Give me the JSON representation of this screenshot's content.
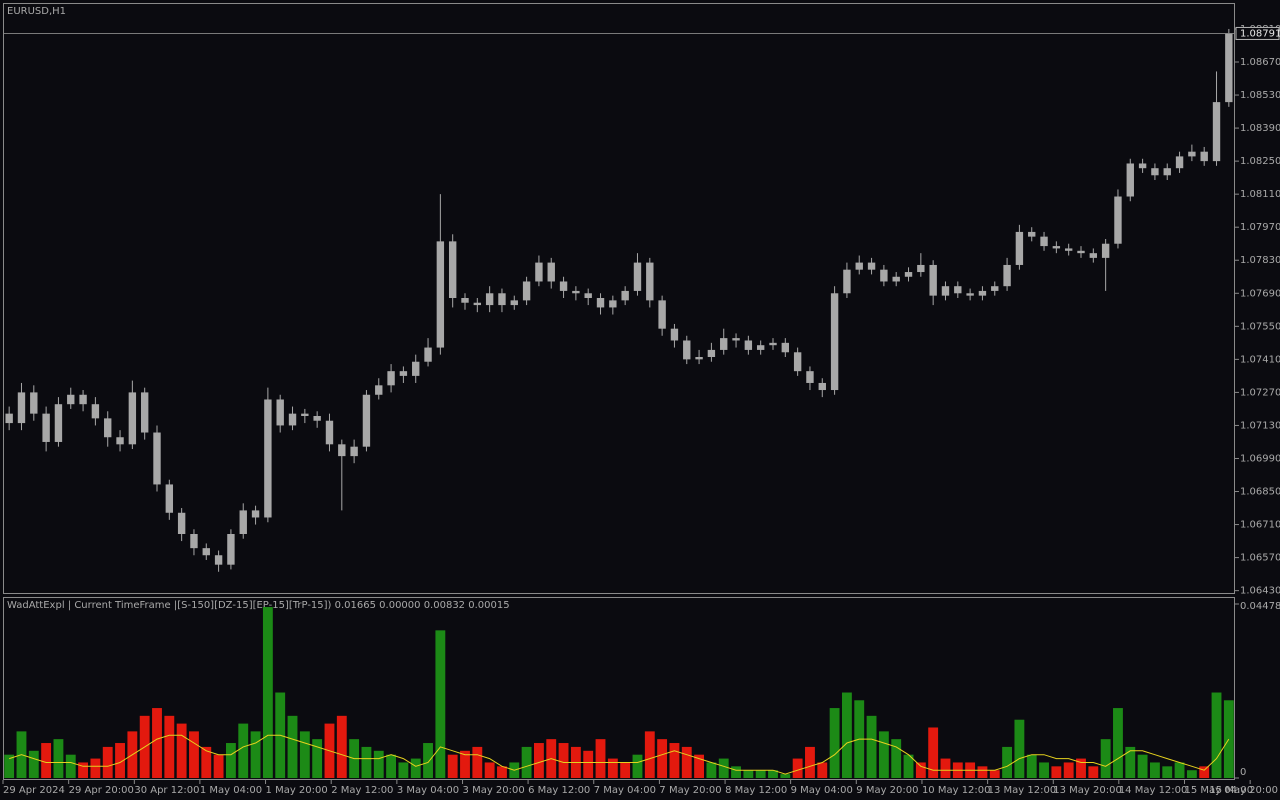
{
  "chart_data": [
    {
      "type": "candlestick",
      "title": "EURUSD,H1",
      "color": "#a8a8a8",
      "open": [
        1.0718,
        1.0714,
        1.0727,
        1.0718,
        1.0706,
        1.0722,
        1.0726,
        1.0722,
        1.0716,
        1.0708,
        1.0705,
        1.0727,
        1.071,
        1.0688,
        1.0676,
        1.0667,
        1.0661,
        1.0658,
        1.0654,
        1.0667,
        1.0677,
        1.0674,
        1.0724,
        1.0713,
        1.0718,
        1.0717,
        1.0715,
        1.0705,
        1.07,
        1.0704,
        1.0726,
        1.073,
        1.0736,
        1.0734,
        1.074,
        1.0746,
        1.0791,
        1.0767,
        1.0765,
        1.0764,
        1.0769,
        1.0764,
        1.0766,
        1.0774,
        1.0782,
        1.0774,
        1.077,
        1.0769,
        1.0767,
        1.0763,
        1.0766,
        1.077,
        1.0782,
        1.0766,
        1.0754,
        1.0749,
        1.0741,
        1.0742,
        1.0745,
        1.075,
        1.0749,
        1.0745,
        1.0747,
        1.0748,
        1.0744,
        1.0736,
        1.0731,
        1.0728,
        1.0769,
        1.0779,
        1.0782,
        1.0779,
        1.0774,
        1.0776,
        1.0778,
        1.0781,
        1.0768,
        1.0772,
        1.0769,
        1.0768,
        1.077,
        1.0772,
        1.0781,
        1.0795,
        1.0793,
        1.0789,
        1.0788,
        1.0787,
        1.0786,
        1.0784,
        1.079,
        1.081,
        1.0824,
        1.0822,
        1.0819,
        1.0822,
        1.0827,
        1.0829,
        1.0825,
        1.085
      ],
      "high": [
        1.0721,
        1.0731,
        1.073,
        1.0721,
        1.0725,
        1.0729,
        1.0728,
        1.0725,
        1.0719,
        1.0711,
        1.0732,
        1.0729,
        1.0713,
        1.069,
        1.0678,
        1.0669,
        1.0663,
        1.066,
        1.0669,
        1.068,
        1.0679,
        1.0729,
        1.0726,
        1.0721,
        1.072,
        1.0719,
        1.0718,
        1.0707,
        1.0707,
        1.0728,
        1.0733,
        1.0739,
        1.0738,
        1.0743,
        1.075,
        1.0811,
        1.0794,
        1.0769,
        1.0767,
        1.0772,
        1.0771,
        1.0768,
        1.0776,
        1.0785,
        1.0784,
        1.0776,
        1.0772,
        1.0771,
        1.0769,
        1.0768,
        1.0772,
        1.0786,
        1.0784,
        1.0768,
        1.0756,
        1.0751,
        1.0745,
        1.0748,
        1.0754,
        1.0752,
        1.0751,
        1.0749,
        1.075,
        1.075,
        1.0746,
        1.0738,
        1.0733,
        1.0772,
        1.0782,
        1.0785,
        1.0784,
        1.0781,
        1.0778,
        1.078,
        1.0786,
        1.0783,
        1.0774,
        1.0774,
        1.0771,
        1.0772,
        1.0774,
        1.0784,
        1.0798,
        1.0797,
        1.0795,
        1.0791,
        1.079,
        1.0789,
        1.0788,
        1.0792,
        1.0813,
        1.0826,
        1.0826,
        1.0824,
        1.0824,
        1.0829,
        1.0832,
        1.0831,
        1.0863,
        1.0881
      ],
      "low": [
        1.0711,
        1.0711,
        1.0715,
        1.0702,
        1.0704,
        1.072,
        1.0719,
        1.0713,
        1.0704,
        1.0702,
        1.0703,
        1.0707,
        1.0685,
        1.0673,
        1.0664,
        1.0658,
        1.0656,
        1.0651,
        1.0652,
        1.0665,
        1.0671,
        1.0672,
        1.071,
        1.0711,
        1.0714,
        1.0712,
        1.0702,
        1.0677,
        1.0697,
        1.0702,
        1.0724,
        1.0727,
        1.0731,
        1.0731,
        1.0738,
        1.0743,
        1.0763,
        1.0762,
        1.0761,
        1.0761,
        1.0761,
        1.0762,
        1.0764,
        1.0772,
        1.0771,
        1.0767,
        1.0766,
        1.0764,
        1.076,
        1.076,
        1.0764,
        1.0768,
        1.0763,
        1.0751,
        1.0746,
        1.0739,
        1.0739,
        1.074,
        1.0743,
        1.0746,
        1.0743,
        1.0743,
        1.0745,
        1.0742,
        1.0734,
        1.0728,
        1.0725,
        1.0726,
        1.0767,
        1.0777,
        1.0777,
        1.0772,
        1.0772,
        1.0774,
        1.0776,
        1.0764,
        1.0766,
        1.0767,
        1.0766,
        1.0766,
        1.0768,
        1.077,
        1.0779,
        1.0791,
        1.0787,
        1.0786,
        1.0785,
        1.0784,
        1.0782,
        1.077,
        1.0788,
        1.0808,
        1.082,
        1.0817,
        1.0817,
        1.082,
        1.0825,
        1.0823,
        1.0823,
        1.0848
      ],
      "close": [
        1.0714,
        1.0727,
        1.0718,
        1.0706,
        1.0722,
        1.0726,
        1.0722,
        1.0716,
        1.0708,
        1.0705,
        1.0727,
        1.071,
        1.0688,
        1.0676,
        1.0667,
        1.0661,
        1.0658,
        1.0654,
        1.0667,
        1.0677,
        1.0674,
        1.0724,
        1.0713,
        1.0718,
        1.0717,
        1.0715,
        1.0705,
        1.07,
        1.0704,
        1.0726,
        1.073,
        1.0736,
        1.0734,
        1.074,
        1.0746,
        1.0791,
        1.0767,
        1.0765,
        1.0764,
        1.0769,
        1.0764,
        1.0766,
        1.0774,
        1.0782,
        1.0774,
        1.077,
        1.0769,
        1.0767,
        1.0763,
        1.0766,
        1.077,
        1.0782,
        1.0766,
        1.0754,
        1.0749,
        1.0741,
        1.0742,
        1.0745,
        1.075,
        1.0749,
        1.0745,
        1.0747,
        1.0748,
        1.0744,
        1.0736,
        1.0731,
        1.0728,
        1.0769,
        1.0779,
        1.0782,
        1.0779,
        1.0774,
        1.0776,
        1.0778,
        1.0781,
        1.0768,
        1.0772,
        1.0769,
        1.0768,
        1.077,
        1.0772,
        1.0781,
        1.0795,
        1.0793,
        1.0789,
        1.0788,
        1.0787,
        1.0786,
        1.0784,
        1.079,
        1.081,
        1.0824,
        1.0822,
        1.0819,
        1.0822,
        1.0827,
        1.0829,
        1.0825,
        1.085,
        1.0879
      ],
      "ylim": [
        1.0642,
        1.0892
      ],
      "yticks": [
        {
          "value": 1.0881,
          "label": "1.08810"
        },
        {
          "value": 1.0867,
          "label": "1.08670"
        },
        {
          "value": 1.0853,
          "label": "1.08530"
        },
        {
          "value": 1.0839,
          "label": "1.08390"
        },
        {
          "value": 1.0825,
          "label": "1.08250"
        },
        {
          "value": 1.0811,
          "label": "1.08110"
        },
        {
          "value": 1.0797,
          "label": "1.07970"
        },
        {
          "value": 1.0783,
          "label": "1.07830"
        },
        {
          "value": 1.0769,
          "label": "1.07690"
        },
        {
          "value": 1.0755,
          "label": "1.07550"
        },
        {
          "value": 1.0741,
          "label": "1.07410"
        },
        {
          "value": 1.0727,
          "label": "1.07270"
        },
        {
          "value": 1.0713,
          "label": "1.07130"
        },
        {
          "value": 1.0699,
          "label": "1.06990"
        },
        {
          "value": 1.0685,
          "label": "1.06850"
        },
        {
          "value": 1.0671,
          "label": "1.06710"
        },
        {
          "value": 1.0657,
          "label": "1.06570"
        },
        {
          "value": 1.0643,
          "label": "1.06430"
        }
      ],
      "last_price": 1.08791,
      "xlim": [
        0,
        100
      ],
      "xticks": [
        {
          "value": 0,
          "label": "29 Apr 2024"
        },
        {
          "value": 5.33,
          "label": "29 Apr 20:00"
        },
        {
          "value": 10.66,
          "label": "30 Apr 12:00"
        },
        {
          "value": 15.98,
          "label": "1 May 04:00"
        },
        {
          "value": 21.31,
          "label": "1 May 20:00"
        },
        {
          "value": 26.64,
          "label": "2 May 12:00"
        },
        {
          "value": 31.97,
          "label": "3 May 04:00"
        },
        {
          "value": 37.3,
          "label": "3 May 20:00"
        },
        {
          "value": 42.62,
          "label": "6 May 12:00"
        },
        {
          "value": 47.95,
          "label": "7 May 04:00"
        },
        {
          "value": 53.28,
          "label": "7 May 20:00"
        },
        {
          "value": 58.61,
          "label": "8 May 12:00"
        },
        {
          "value": 63.93,
          "label": "9 May 04:00"
        },
        {
          "value": 69.26,
          "label": "9 May 20:00"
        },
        {
          "value": 74.59,
          "label": "10 May 12:00"
        },
        {
          "value": 79.92,
          "label": "13 May 12:00"
        },
        {
          "value": 85.25,
          "label": "13 May 20:00"
        },
        {
          "value": 90.57,
          "label": "14 May 12:00"
        },
        {
          "value": 95.9,
          "label": "15 May 04:00"
        },
        {
          "value": 101.23,
          "label": "15 May 20:00"
        }
      ]
    },
    {
      "type": "bar",
      "title": "WadAttExpl | Current TimeFrame |[S-150][DZ-15][EP-15][TrP-15]) 0.01665 0.00000 0.00832 0.00015",
      "values": [
        0.006,
        0.012,
        0.007,
        0.009,
        0.01,
        0.006,
        0.004,
        0.005,
        0.008,
        0.009,
        0.012,
        0.016,
        0.018,
        0.016,
        0.014,
        0.012,
        0.008,
        0.006,
        0.009,
        0.014,
        0.012,
        0.044,
        0.022,
        0.016,
        0.012,
        0.01,
        0.014,
        0.016,
        0.01,
        0.008,
        0.007,
        0.006,
        0.004,
        0.005,
        0.009,
        0.038,
        0.006,
        0.007,
        0.008,
        0.004,
        0.003,
        0.004,
        0.008,
        0.009,
        0.01,
        0.009,
        0.008,
        0.007,
        0.01,
        0.005,
        0.004,
        0.006,
        0.012,
        0.01,
        0.009,
        0.008,
        0.006,
        0.004,
        0.005,
        0.003,
        0.002,
        0.002,
        0.002,
        0.001,
        0.005,
        0.008,
        0.004,
        0.018,
        0.022,
        0.02,
        0.016,
        0.012,
        0.01,
        0.006,
        0.004,
        0.013,
        0.005,
        0.004,
        0.004,
        0.003,
        0.002,
        0.008,
        0.015,
        0.006,
        0.004,
        0.003,
        0.004,
        0.005,
        0.003,
        0.01,
        0.018,
        0.008,
        0.006,
        0.004,
        0.003,
        0.004,
        0.002,
        0.003,
        0.022,
        0.02
      ],
      "colors": [
        "#1c8a16",
        "#1c8a16",
        "#1c8a16",
        "#e3190e",
        "#1c8a16",
        "#1c8a16",
        "#e3190e",
        "#e3190e",
        "#e3190e",
        "#e3190e",
        "#e3190e",
        "#e3190e",
        "#e3190e",
        "#e3190e",
        "#e3190e",
        "#e3190e",
        "#e3190e",
        "#e3190e",
        "#1c8a16",
        "#1c8a16",
        "#1c8a16",
        "#1c8a16",
        "#1c8a16",
        "#1c8a16",
        "#1c8a16",
        "#1c8a16",
        "#e3190e",
        "#e3190e",
        "#1c8a16",
        "#1c8a16",
        "#1c8a16",
        "#1c8a16",
        "#1c8a16",
        "#1c8a16",
        "#1c8a16",
        "#1c8a16",
        "#e3190e",
        "#e3190e",
        "#e3190e",
        "#e3190e",
        "#e3190e",
        "#1c8a16",
        "#1c8a16",
        "#e3190e",
        "#e3190e",
        "#e3190e",
        "#e3190e",
        "#e3190e",
        "#e3190e",
        "#e3190e",
        "#e3190e",
        "#1c8a16",
        "#e3190e",
        "#e3190e",
        "#e3190e",
        "#e3190e",
        "#e3190e",
        "#1c8a16",
        "#1c8a16",
        "#1c8a16",
        "#1c8a16",
        "#1c8a16",
        "#1c8a16",
        "#1c8a16",
        "#e3190e",
        "#e3190e",
        "#e3190e",
        "#1c8a16",
        "#1c8a16",
        "#1c8a16",
        "#1c8a16",
        "#1c8a16",
        "#1c8a16",
        "#1c8a16",
        "#e3190e",
        "#e3190e",
        "#e3190e",
        "#e3190e",
        "#e3190e",
        "#e3190e",
        "#e3190e",
        "#1c8a16",
        "#1c8a16",
        "#1c8a16",
        "#1c8a16",
        "#e3190e",
        "#e3190e",
        "#e3190e",
        "#e3190e",
        "#1c8a16",
        "#1c8a16",
        "#1c8a16",
        "#1c8a16",
        "#1c8a16",
        "#1c8a16",
        "#1c8a16",
        "#1c8a16",
        "#e3190e",
        "#1c8a16",
        "#1c8a16"
      ],
      "signal_line": {
        "color": "#e6d21e",
        "values": [
          0.005,
          0.006,
          0.005,
          0.004,
          0.004,
          0.004,
          0.003,
          0.003,
          0.003,
          0.004,
          0.006,
          0.008,
          0.01,
          0.011,
          0.011,
          0.009,
          0.007,
          0.006,
          0.006,
          0.008,
          0.009,
          0.011,
          0.011,
          0.01,
          0.009,
          0.008,
          0.007,
          0.006,
          0.005,
          0.005,
          0.005,
          0.006,
          0.005,
          0.003,
          0.004,
          0.008,
          0.007,
          0.006,
          0.006,
          0.005,
          0.003,
          0.002,
          0.003,
          0.004,
          0.005,
          0.004,
          0.004,
          0.004,
          0.004,
          0.004,
          0.004,
          0.004,
          0.005,
          0.006,
          0.007,
          0.006,
          0.005,
          0.004,
          0.003,
          0.002,
          0.002,
          0.002,
          0.002,
          0.001,
          0.002,
          0.003,
          0.004,
          0.006,
          0.009,
          0.01,
          0.01,
          0.009,
          0.008,
          0.006,
          0.003,
          0.002,
          0.002,
          0.002,
          0.002,
          0.002,
          0.002,
          0.003,
          0.005,
          0.006,
          0.006,
          0.005,
          0.005,
          0.004,
          0.004,
          0.003,
          0.005,
          0.007,
          0.007,
          0.006,
          0.005,
          0.004,
          0.003,
          0.002,
          0.005,
          0.01
        ]
      },
      "ylim": [
        0,
        0.04478
      ],
      "yticks": [
        0.04478,
        0
      ]
    }
  ]
}
